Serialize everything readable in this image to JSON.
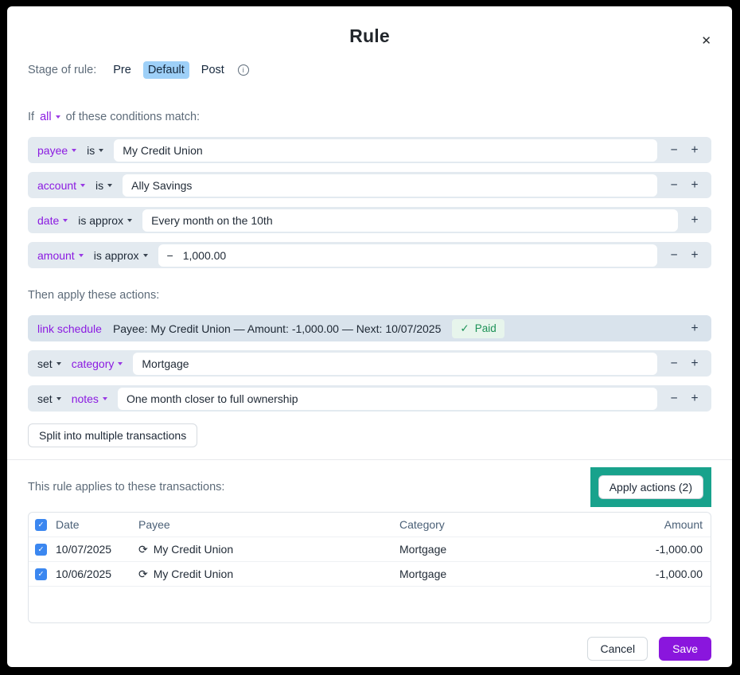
{
  "dialog": {
    "title": "Rule"
  },
  "icons": {
    "close": "✕",
    "info": "i",
    "check": "✓",
    "recurring": "⟳",
    "minus": "−",
    "plus": "+",
    "negative_sign": "−"
  },
  "colors": {
    "accent_purple": "#8b1ae1",
    "save_purple": "#8a16dd",
    "stage_selected_bg": "#9ed0f8",
    "condition_row_bg": "#e3eaf0",
    "schedule_row_bg": "#d9e3ec",
    "paid_green_text": "#1d9257",
    "paid_green_bg": "#e7f5ec",
    "highlight_teal": "#18a28c",
    "checkbox_blue": "#3b87f0"
  },
  "stage": {
    "label": "Stage of rule:",
    "options": [
      {
        "label": "Pre",
        "selected": false
      },
      {
        "label": "Default",
        "selected": true
      },
      {
        "label": "Post",
        "selected": false
      }
    ]
  },
  "conditions": {
    "prefix": "If",
    "operator": "all",
    "suffix": "of these conditions match:",
    "rows": [
      {
        "field": "payee",
        "op": "is",
        "value": "My Credit Union"
      },
      {
        "field": "account",
        "op": "is",
        "value": "Ally Savings"
      },
      {
        "field": "date",
        "op": "is approx",
        "value": "Every month on the 10th"
      },
      {
        "field": "amount",
        "op": "is approx",
        "value": "1,000.00"
      }
    ]
  },
  "actions": {
    "heading": "Then apply these actions:",
    "schedule": {
      "label": "link schedule",
      "description": "Payee: My Credit Union — Amount: -1,000.00 — Next: 10/07/2025",
      "badge_label": "Paid"
    },
    "rows": [
      {
        "verb": "set",
        "field": "category",
        "value": "Mortgage"
      },
      {
        "verb": "set",
        "field": "notes",
        "value": "One month closer to full ownership"
      }
    ],
    "split_button": "Split into multiple transactions"
  },
  "transactions": {
    "heading": "This rule applies to these transactions:",
    "apply_button": "Apply actions (2)",
    "columns": {
      "date": "Date",
      "payee": "Payee",
      "category": "Category",
      "amount": "Amount"
    },
    "rows": [
      {
        "date": "10/07/2025",
        "payee": "My Credit Union",
        "category": "Mortgage",
        "amount": "-1,000.00"
      },
      {
        "date": "10/06/2025",
        "payee": "My Credit Union",
        "category": "Mortgage",
        "amount": "-1,000.00"
      }
    ]
  },
  "footer": {
    "cancel": "Cancel",
    "save": "Save"
  }
}
